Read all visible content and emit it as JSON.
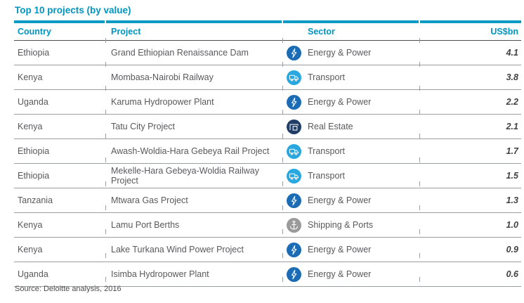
{
  "title": "Top 10 projects (by value)",
  "source_note": "Source: Deloitte analysis, 2016",
  "colors": {
    "accent_teal": "#0095bf",
    "energy_power_icon": "#1c6cb5",
    "transport_icon": "#29a8e0",
    "real_estate_icon": "#203d68",
    "shipping_ports_icon": "#9a9a9a",
    "row_text": "#58595b",
    "value_text": "#414042",
    "row_divider": "#9b9ea1",
    "header_divider": "#4d4d4f"
  },
  "table": {
    "headers": {
      "country": "Country",
      "project": "Project",
      "sector": "Sector",
      "value": "US$bn"
    },
    "rows": [
      {
        "country": "Ethiopia",
        "project": "Grand Ethiopian Renaissance Dam",
        "sector": "Energy & Power",
        "icon": "lightning-bolt-icon",
        "value": "4.1"
      },
      {
        "country": "Kenya",
        "project": "Mombasa-Nairobi Railway",
        "sector": "Transport",
        "icon": "truck-icon",
        "value": "3.8"
      },
      {
        "country": "Uganda",
        "project": "Karuma Hydropower Plant",
        "sector": "Energy & Power",
        "icon": "lightning-bolt-icon",
        "value": "2.2"
      },
      {
        "country": "Kenya",
        "project": "Tatu City Project",
        "sector": "Real Estate",
        "icon": "building-crane-icon",
        "value": "2.1"
      },
      {
        "country": "Ethiopia",
        "project": "Awash-Woldia-Hara Gebeya Rail Project",
        "sector": "Transport",
        "icon": "truck-icon",
        "value": "1.7"
      },
      {
        "country": "Ethiopia",
        "project": "Mekelle-Hara Gebeya-Woldia Railway Project",
        "sector": "Transport",
        "icon": "truck-icon",
        "value": "1.5"
      },
      {
        "country": "Tanzania",
        "project": "Mtwara Gas Project",
        "sector": "Energy & Power",
        "icon": "lightning-bolt-icon",
        "value": "1.3"
      },
      {
        "country": "Kenya",
        "project": "Lamu Port Berths",
        "sector": "Shipping & Ports",
        "icon": "anchor-icon",
        "value": "1.0"
      },
      {
        "country": "Kenya",
        "project": "Lake Turkana Wind Power Project",
        "sector": "Energy & Power",
        "icon": "lightning-bolt-icon",
        "value": "0.9"
      },
      {
        "country": "Uganda",
        "project": "Isimba Hydropower Plant",
        "sector": "Energy & Power",
        "icon": "lightning-bolt-icon",
        "value": "0.6"
      }
    ]
  },
  "chart_data": {
    "type": "table",
    "title": "Top 10 projects (by value)",
    "columns": [
      "Country",
      "Project",
      "Sector",
      "US$bn"
    ],
    "rows": [
      [
        "Ethiopia",
        "Grand Ethiopian Renaissance Dam",
        "Energy & Power",
        4.1
      ],
      [
        "Kenya",
        "Mombasa-Nairobi Railway",
        "Transport",
        3.8
      ],
      [
        "Uganda",
        "Karuma Hydropower Plant",
        "Energy & Power",
        2.2
      ],
      [
        "Kenya",
        "Tatu City Project",
        "Real Estate",
        2.1
      ],
      [
        "Ethiopia",
        "Awash-Woldia-Hara Gebeya Rail Project",
        "Transport",
        1.7
      ],
      [
        "Ethiopia",
        "Mekelle-Hara Gebeya-Woldia Railway Project",
        "Transport",
        1.5
      ],
      [
        "Tanzania",
        "Mtwara Gas Project",
        "Energy & Power",
        1.3
      ],
      [
        "Kenya",
        "Lamu Port Berths",
        "Shipping & Ports",
        1.0
      ],
      [
        "Kenya",
        "Lake Turkana Wind Power Project",
        "Energy & Power",
        0.9
      ],
      [
        "Uganda",
        "Isimba Hydropower Plant",
        "Energy & Power",
        0.6
      ]
    ],
    "source": "Source: Deloitte analysis, 2016"
  }
}
